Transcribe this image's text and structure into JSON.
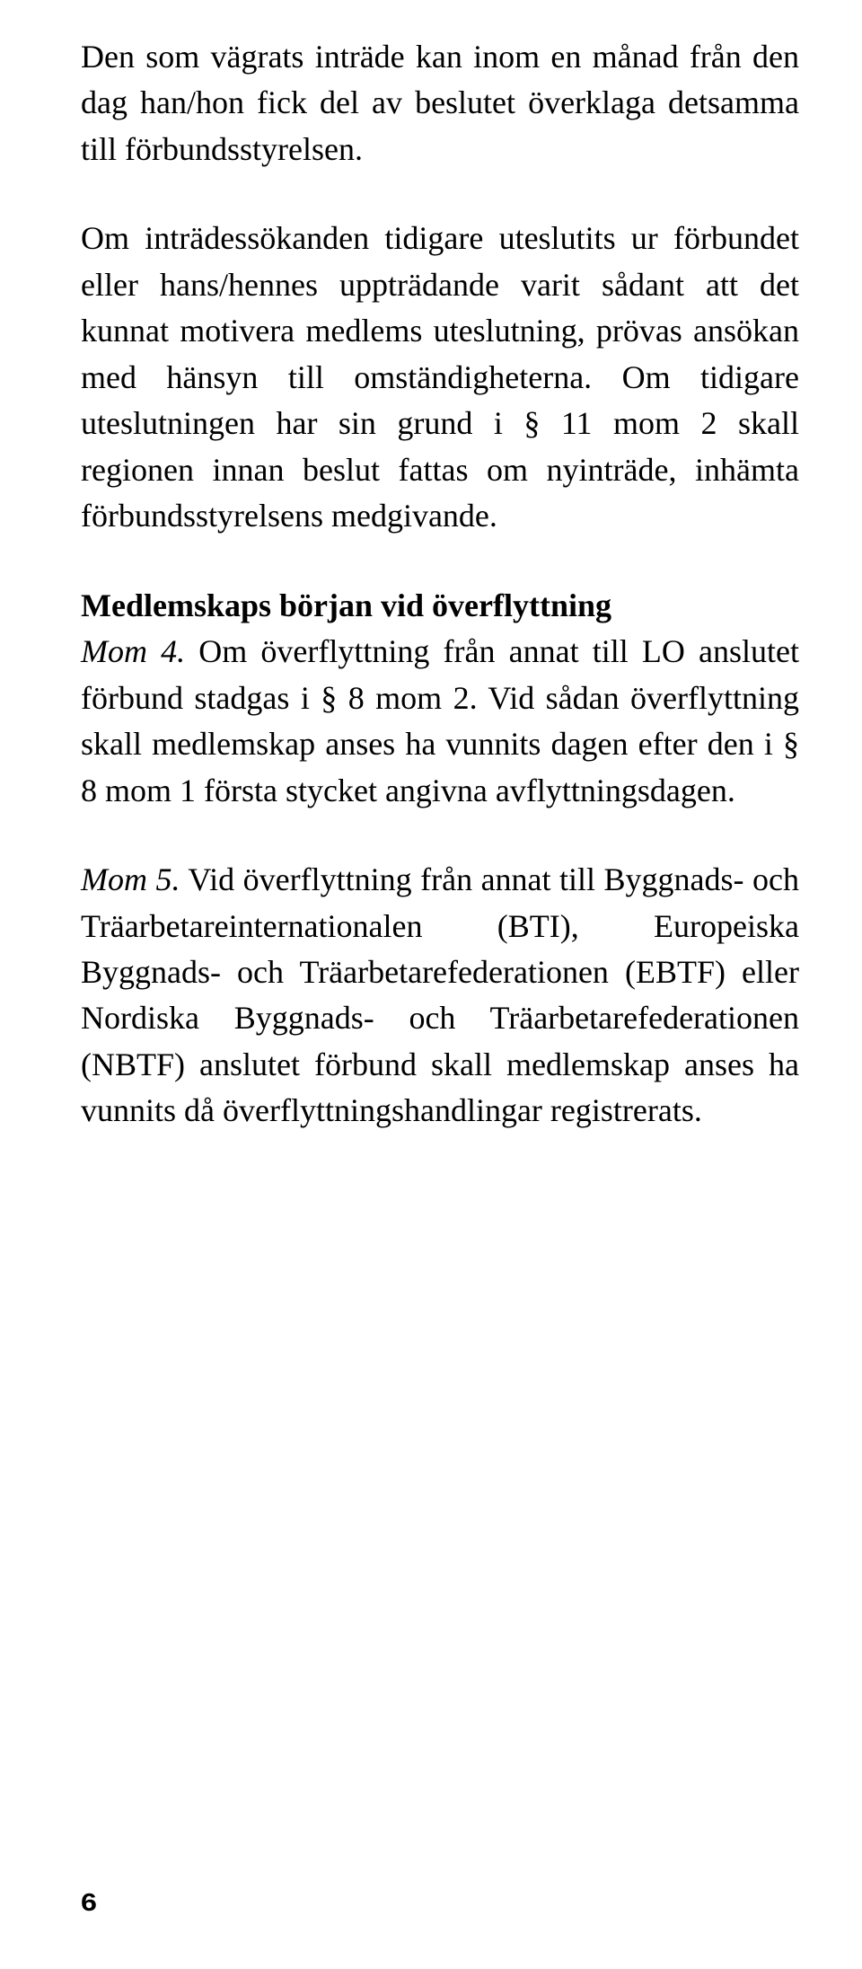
{
  "paragraphs": {
    "p1": "Den som vägrats inträde kan inom en månad från den dag han/hon fick del av beslutet över­klaga detsamma till förbundsstyrelsen.",
    "p2": "Om inträdessökanden tidigare uteslutits ur förbundet eller hans/hennes uppträdande varit sådant att det kunnat motivera medlems uteslut­ning, prövas ansökan med hänsyn till omstän­digheterna. Om tidigare uteslutningen har sin grund i § 11 mom 2 skall regionen innan beslut fattas om nyinträde, inhämta förbundsstyrelsens medgivande.",
    "h1": "Medlemskaps början vid överflyttning",
    "p3_pre": "Mom 4.",
    "p3": " Om överflyttning från annat till LO an­slutet förbund stadgas i § 8 mom 2. Vid sådan överflyttning skall medlemskap anses ha vun­nits dagen efter den i § 8 mom 1 första stycket angivna avflyttningsdagen.",
    "p4_pre": "Mom 5.",
    "p4": " Vid överflyttning från annat till Bygg­nads- och Träarbetareinternationalen (BTI), Europeiska Byggnads- och Träarbetarefede­rationen (EBTF) eller Nordiska Byggnads- och Träarbetarefederationen (NBTF) anslutet för­bund skall medlemskap anses ha vunnits då överflyttningshandlingar registrerats."
  },
  "page_number": "6"
}
